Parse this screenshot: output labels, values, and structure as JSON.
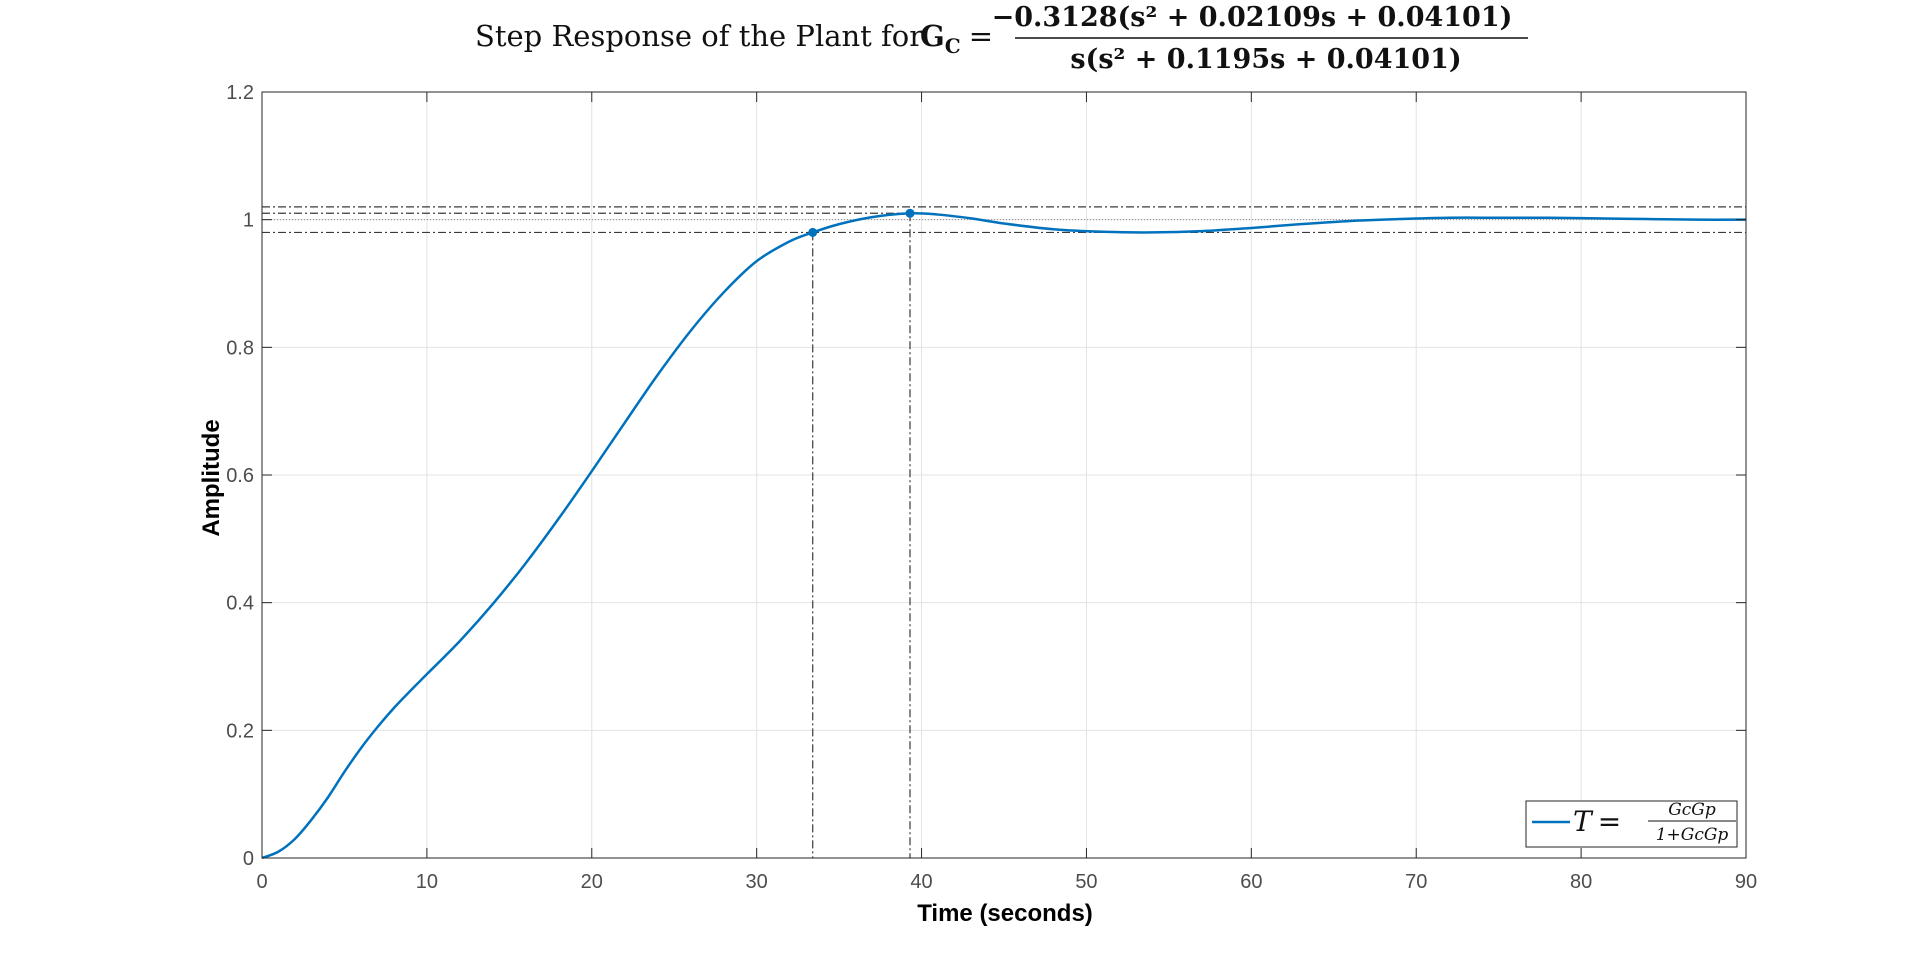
{
  "chart_data": {
    "type": "line",
    "title": {
      "prefix": "Step Response of the Plant for ",
      "lhs": "G",
      "lhs_sub": "C",
      "numerator": "−0.3128(s² + 0.02109s + 0.04101)",
      "denominator": "s(s² + 0.1195s + 0.04101)"
    },
    "xlabel": "Time (seconds)",
    "ylabel": "Amplitude",
    "xlim": [
      0,
      90
    ],
    "ylim": [
      0,
      1.2
    ],
    "xticks": [
      0,
      10,
      20,
      30,
      40,
      50,
      60,
      70,
      80,
      90
    ],
    "yticks": [
      0,
      0.2,
      0.4,
      0.6,
      0.8,
      1,
      1.2
    ],
    "ytick_labels": [
      "0",
      "0.2",
      "0.4",
      "0.6",
      "0.8",
      "1",
      "1.2"
    ],
    "grid": true,
    "legend_position": "bottom-right",
    "series": [
      {
        "name": "T = GcGp / (1+GcGp)",
        "color": "#0072BD",
        "x": [
          0,
          1,
          2,
          3,
          4,
          5,
          6,
          7,
          8,
          9,
          10,
          12,
          14,
          16,
          18,
          20,
          22,
          24,
          26,
          28,
          30,
          32,
          33.4,
          35,
          37,
          39.3,
          41,
          43,
          45,
          48,
          51,
          54,
          57,
          60,
          63,
          66,
          69,
          72,
          75,
          78,
          81,
          84,
          87,
          90
        ],
        "y": [
          0,
          0.01,
          0.03,
          0.06,
          0.095,
          0.135,
          0.172,
          0.205,
          0.235,
          0.262,
          0.288,
          0.34,
          0.398,
          0.462,
          0.532,
          0.606,
          0.682,
          0.757,
          0.826,
          0.886,
          0.935,
          0.966,
          0.98,
          0.993,
          1.004,
          1.01,
          1.008,
          1.002,
          0.994,
          0.985,
          0.981,
          0.98,
          0.982,
          0.987,
          0.993,
          0.998,
          1.001,
          1.003,
          1.003,
          1.003,
          1.002,
          1.001,
          1.0,
          1.0
        ]
      }
    ],
    "characteristics": {
      "steady_state": 1,
      "settling_band": [
        0.98,
        1.02
      ],
      "settling_point": {
        "x": 33.4,
        "y": 0.98
      },
      "peak_point": {
        "x": 39.3,
        "y": 1.01
      }
    },
    "legend": {
      "lhs": "T",
      "numerator": "GcGp",
      "denominator": "1+GcGp"
    }
  }
}
